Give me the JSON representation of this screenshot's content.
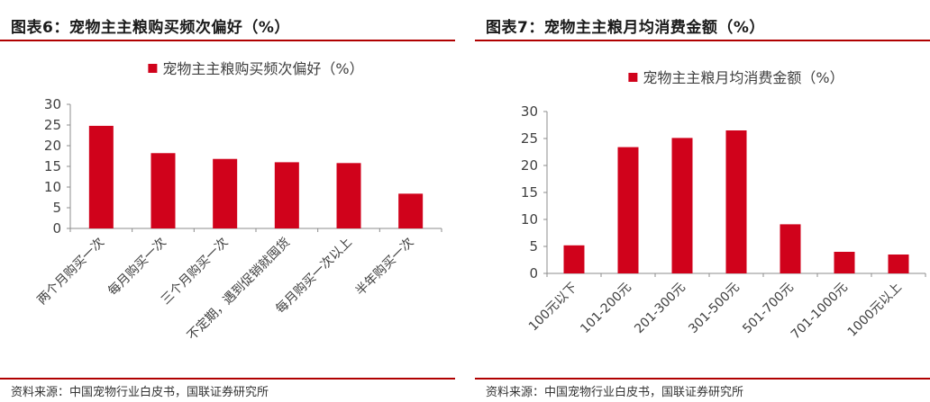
{
  "charts": [
    {
      "title": "图表6：宠物主主粮购买频次偏好（%）",
      "source": "资料来源：中国宠物行业白皮书，国联证券研究所",
      "chart_data": {
        "type": "bar",
        "legend": "宠物主主粮购买频次偏好（%）",
        "legend_placement": "top-center",
        "categories": [
          "两个月购买一次",
          "每月购买一次",
          "三个月购买一次",
          "不定期，遇到促销就囤货",
          "每月购买一次以上",
          "半年购买一次"
        ],
        "values": [
          24.8,
          18.2,
          16.8,
          16.0,
          15.8,
          8.4
        ],
        "ylim": [
          0,
          30
        ],
        "yticks": [
          "0",
          "5",
          "10",
          "15",
          "20",
          "25",
          "30"
        ],
        "grid": false,
        "color": "#d0021b"
      }
    },
    {
      "title": "图表7：宠物主主粮月均消费金额（%）",
      "source": "资料来源：中国宠物行业白皮书，国联证券研究所",
      "chart_data": {
        "type": "bar",
        "legend": "宠物主主粮月均消费金额（%）",
        "legend_placement": "top-center",
        "categories": [
          "100元以下",
          "101-200元",
          "201-300元",
          "301-500元",
          "501-700元",
          "701-1000元",
          "1000元以上"
        ],
        "values": [
          5.2,
          23.4,
          25.1,
          26.5,
          9.1,
          4.0,
          3.5
        ],
        "ylim": [
          0,
          30
        ],
        "yticks": [
          "0",
          "5",
          "10",
          "15",
          "20",
          "25",
          "30"
        ],
        "grid": false,
        "color": "#d0021b"
      }
    }
  ]
}
